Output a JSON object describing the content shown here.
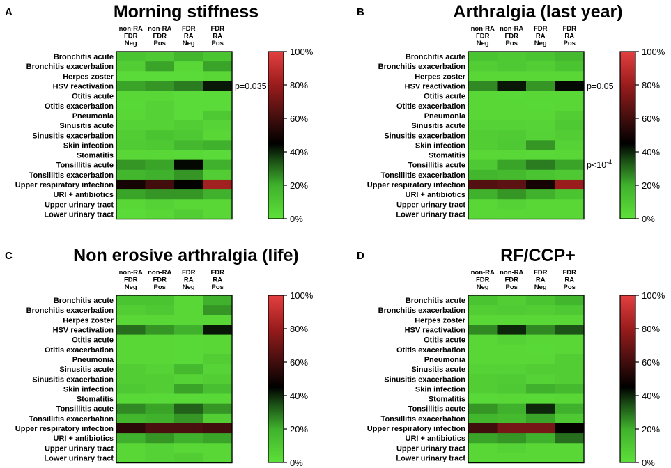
{
  "colorbar": {
    "ticks": [
      "100%",
      "80%",
      "60%",
      "40%",
      "20%",
      "0%"
    ],
    "scale": [
      {
        "pct": 0,
        "color": "#5ee03a"
      },
      {
        "pct": 20,
        "color": "#3fb12c"
      },
      {
        "pct": 35,
        "color": "#1a4d15"
      },
      {
        "pct": 45,
        "color": "#000000"
      },
      {
        "pct": 62,
        "color": "#4a0f0f"
      },
      {
        "pct": 80,
        "color": "#9a1c1c"
      },
      {
        "pct": 100,
        "color": "#e34040"
      }
    ]
  },
  "chart_data": [
    {
      "type": "heatmap",
      "panel": "A",
      "title": "Morning stiffness",
      "columns": [
        [
          "non-RA",
          "FDR",
          "Neg"
        ],
        [
          "non-RA",
          "FDR",
          "Pos"
        ],
        [
          "FDR",
          "RA",
          "Neg"
        ],
        [
          "FDR",
          "RA",
          "Pos"
        ]
      ],
      "rows": [
        "Bronchitis acute",
        "Bronchitis exacerbation",
        "Herpes zoster",
        "HSV reactivation",
        "Otitis acute",
        "Otitis exacerbation",
        "Pneumonia",
        "Sinusitis acute",
        "Sinusitis exacerbation",
        "Skin infection",
        "Stomatitis",
        "Tonsillitis acute",
        "Tonsillitis exacerbation",
        "Upper respiratory infection",
        "URI + antibiotics",
        "Upper urinary tract",
        "Lower urinary tract"
      ],
      "values": [
        [
          12,
          10,
          18,
          12
        ],
        [
          8,
          22,
          4,
          22
        ],
        [
          2,
          2,
          2,
          4
        ],
        [
          22,
          24,
          28,
          42
        ],
        [
          4,
          4,
          2,
          2
        ],
        [
          3,
          6,
          2,
          2
        ],
        [
          4,
          6,
          2,
          10
        ],
        [
          6,
          6,
          8,
          5
        ],
        [
          8,
          12,
          10,
          4
        ],
        [
          9,
          10,
          17,
          20
        ],
        [
          4,
          4,
          3,
          2
        ],
        [
          24,
          22,
          44,
          20
        ],
        [
          18,
          20,
          24,
          8
        ],
        [
          50,
          60,
          46,
          82
        ],
        [
          22,
          24,
          24,
          20
        ],
        [
          4,
          6,
          4,
          4
        ],
        [
          2,
          4,
          8,
          4
        ]
      ],
      "annotations": [
        {
          "row": "HSV reactivation",
          "text": "p=0.035"
        }
      ]
    },
    {
      "type": "heatmap",
      "panel": "B",
      "title": "Arthralgia (last year)",
      "columns": [
        [
          "non-RA",
          "FDR",
          "Neg"
        ],
        [
          "non-RA",
          "FDR",
          "Pos"
        ],
        [
          "FDR",
          "RA",
          "Neg"
        ],
        [
          "FDR",
          "RA",
          "Pos"
        ]
      ],
      "rows": [
        "Bronchitis acute",
        "Bronchitis exacerbation",
        "Herpes zoster",
        "HSV reactivation",
        "Otitis acute",
        "Otitis exacerbation",
        "Pneumonia",
        "Sinusitis acute",
        "Sinusitis exacerbation",
        "Skin infection",
        "Stomatitis",
        "Tonsillitis acute",
        "Tonsillitis exacerbation",
        "Upper respiratory infection",
        "URI + antibiotics",
        "Upper urinary tract",
        "Lower urinary tract"
      ],
      "values": [
        [
          12,
          10,
          12,
          16
        ],
        [
          8,
          10,
          8,
          12
        ],
        [
          4,
          4,
          4,
          4
        ],
        [
          26,
          42,
          24,
          44
        ],
        [
          4,
          3,
          4,
          4
        ],
        [
          4,
          4,
          3,
          4
        ],
        [
          4,
          4,
          4,
          8
        ],
        [
          6,
          6,
          5,
          10
        ],
        [
          8,
          9,
          6,
          8
        ],
        [
          8,
          10,
          24,
          6
        ],
        [
          4,
          4,
          3,
          4
        ],
        [
          10,
          22,
          28,
          22
        ],
        [
          18,
          16,
          12,
          10
        ],
        [
          64,
          66,
          50,
          80
        ],
        [
          20,
          24,
          20,
          12
        ],
        [
          4,
          6,
          4,
          4
        ],
        [
          4,
          4,
          4,
          4
        ]
      ],
      "annotations": [
        {
          "row": "HSV reactivation",
          "text": "p=0.05"
        },
        {
          "row": "Tonsillitis acute",
          "text": "p<10",
          "sup": "-4"
        }
      ]
    },
    {
      "type": "heatmap",
      "panel": "C",
      "title": "Non erosive arthralgia (life)",
      "columns": [
        [
          "non-RA",
          "FDR",
          "Neg"
        ],
        [
          "non-RA",
          "FDR",
          "Pos"
        ],
        [
          "FDR",
          "RA",
          "Neg"
        ],
        [
          "FDR",
          "RA",
          "Pos"
        ]
      ],
      "rows": [
        "Bronchitis acute",
        "Bronchitis exacerbation",
        "Herpes zoster",
        "HSV reactivation",
        "Otitis acute",
        "Otitis exacerbation",
        "Pneumonia",
        "Sinusitis acute",
        "Sinusitis exacerbation",
        "Skin infection",
        "Stomatitis",
        "Tonsillitis acute",
        "Tonsillitis exacerbation",
        "Upper respiratory infection",
        "URI + antibiotics",
        "Upper urinary tract",
        "Lower urinary tract"
      ],
      "values": [
        [
          12,
          12,
          4,
          20
        ],
        [
          8,
          10,
          4,
          24
        ],
        [
          4,
          4,
          4,
          4
        ],
        [
          30,
          24,
          20,
          42
        ],
        [
          4,
          4,
          3,
          4
        ],
        [
          4,
          4,
          3,
          4
        ],
        [
          4,
          4,
          3,
          8
        ],
        [
          8,
          6,
          16,
          5
        ],
        [
          8,
          8,
          6,
          8
        ],
        [
          10,
          8,
          22,
          14
        ],
        [
          3,
          3,
          3,
          3
        ],
        [
          26,
          22,
          32,
          24
        ],
        [
          18,
          20,
          24,
          8
        ],
        [
          55,
          62,
          62,
          60
        ],
        [
          20,
          24,
          20,
          22
        ],
        [
          4,
          6,
          4,
          4
        ],
        [
          4,
          6,
          8,
          4
        ]
      ],
      "annotations": []
    },
    {
      "type": "heatmap",
      "panel": "D",
      "title": "RF/CCP+",
      "columns": [
        [
          "non-RA",
          "FDR",
          "Neg"
        ],
        [
          "non-RA",
          "FDR",
          "Pos"
        ],
        [
          "FDR",
          "RA",
          "Neg"
        ],
        [
          "FDR",
          "RA",
          "Pos"
        ]
      ],
      "rows": [
        "Bronchitis acute",
        "Bronchitis exacerbation",
        "Herpes zoster",
        "HSV reactivation",
        "Otitis acute",
        "Otitis exacerbation",
        "Pneumonia",
        "Sinusitis acute",
        "Sinusitis exacerbation",
        "Skin infection",
        "Stomatitis",
        "Tonsillitis acute",
        "Tonsillitis exacerbation",
        "Upper respiratory infection",
        "URI + antibiotics",
        "Upper urinary tract",
        "Lower urinary tract"
      ],
      "values": [
        [
          12,
          8,
          12,
          18
        ],
        [
          8,
          9,
          8,
          10
        ],
        [
          4,
          4,
          4,
          4
        ],
        [
          26,
          40,
          26,
          34
        ],
        [
          4,
          6,
          4,
          4
        ],
        [
          4,
          4,
          3,
          4
        ],
        [
          4,
          4,
          4,
          8
        ],
        [
          6,
          6,
          8,
          8
        ],
        [
          8,
          9,
          6,
          8
        ],
        [
          8,
          10,
          20,
          16
        ],
        [
          3,
          4,
          3,
          4
        ],
        [
          24,
          20,
          40,
          20
        ],
        [
          18,
          16,
          22,
          10
        ],
        [
          60,
          72,
          72,
          46
        ],
        [
          22,
          24,
          20,
          30
        ],
        [
          4,
          6,
          4,
          4
        ],
        [
          4,
          4,
          4,
          4
        ]
      ],
      "annotations": []
    }
  ]
}
